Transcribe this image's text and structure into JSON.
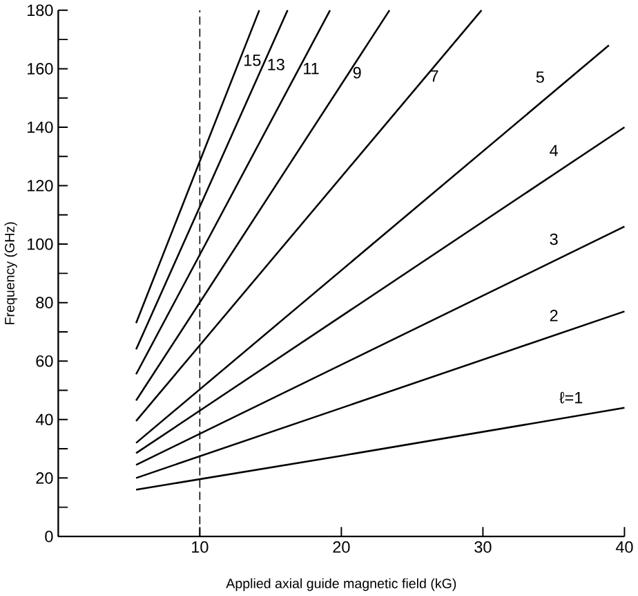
{
  "chart_data": {
    "type": "line",
    "xlabel": "Applied axial guide magnetic field (kG)",
    "ylabel": "Frequency (GHz)",
    "xlim": [
      0,
      40
    ],
    "ylim": [
      0,
      180
    ],
    "xticks": [
      10,
      20,
      30,
      40
    ],
    "yticks": [
      0,
      {
        "value": 10,
        "label": null
      },
      20,
      {
        "value": 30,
        "label": null
      },
      40,
      {
        "value": 50,
        "label": null
      },
      60,
      {
        "value": 70,
        "label": null
      },
      80,
      {
        "value": 90,
        "label": null
      },
      100,
      {
        "value": 110,
        "label": null
      },
      120,
      {
        "value": 130,
        "label": null
      },
      140,
      {
        "value": 150,
        "label": null
      },
      160,
      {
        "value": 170,
        "label": null
      },
      180
    ],
    "grid": false,
    "legend": false,
    "marker": "none",
    "line_style": "solid",
    "ref_lines": [
      {
        "axis": "x",
        "value": 10,
        "line_style": "dashed",
        "color": "#000000"
      }
    ],
    "series": [
      {
        "name": "ℓ=1",
        "color": "#000000",
        "x": [
          5.5,
          20,
          40
        ],
        "values": [
          16,
          27.6,
          44
        ]
      },
      {
        "name": "2",
        "color": "#000000",
        "x": [
          5.5,
          40
        ],
        "values": [
          20,
          77
        ]
      },
      {
        "name": "3",
        "color": "#000000",
        "x": [
          5.5,
          40
        ],
        "values": [
          24.5,
          106
        ]
      },
      {
        "name": "4",
        "color": "#000000",
        "x": [
          5.5,
          40
        ],
        "values": [
          28.5,
          140
        ]
      },
      {
        "name": "5",
        "color": "#000000",
        "x": [
          5.5,
          38.9
        ],
        "values": [
          32,
          168
        ]
      },
      {
        "name": "7",
        "color": "#000000",
        "x": [
          5.5,
          29.9
        ],
        "values": [
          39.5,
          180
        ]
      },
      {
        "name": "9",
        "color": "#000000",
        "x": [
          5.5,
          23.4
        ],
        "values": [
          46.5,
          180
        ]
      },
      {
        "name": "11",
        "color": "#000000",
        "x": [
          5.5,
          19.2
        ],
        "values": [
          55.5,
          180
        ]
      },
      {
        "name": "13",
        "color": "#000000",
        "x": [
          5.5,
          16.2
        ],
        "values": [
          64,
          180
        ]
      },
      {
        "name": "15",
        "color": "#000000",
        "x": [
          5.5,
          14.2
        ],
        "values": [
          73,
          180
        ]
      }
    ]
  }
}
